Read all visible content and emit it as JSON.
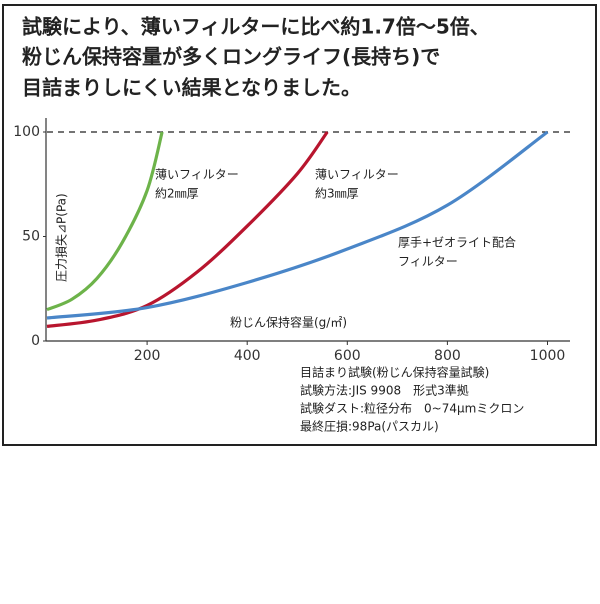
{
  "chart_data": {
    "type": "line",
    "title": [
      "試験により、薄いフィルターに比べ約1.7倍～5倍、",
      "粉じん保持容量が多くロングライフ(長持ち)で",
      "目詰まりしにくい結果となりました。"
    ],
    "x_label": "粉じん保持容量(g/㎡)",
    "y_label": "圧力損失⊿P(Pa)",
    "series": [
      {
        "color": "#6db34a",
        "x": [
          0,
          50,
          100,
          150,
          200,
          230
        ],
        "values": [
          15,
          20,
          30,
          47,
          72,
          100
        ],
        "label": [
          "薄いフィルター",
          "約2㎜厚"
        ]
      },
      {
        "color": "#b8152e",
        "x": [
          0,
          100,
          200,
          300,
          400,
          500,
          560
        ],
        "values": [
          7,
          10,
          17,
          33,
          55,
          80,
          100
        ],
        "label": [
          "薄いフィルター",
          "約3㎜厚"
        ]
      },
      {
        "color": "#4a86c8",
        "x": [
          0,
          200,
          400,
          600,
          800,
          1000
        ],
        "values": [
          11,
          16,
          28,
          44,
          65,
          100
        ],
        "label": [
          "厚手+ゼオライト配合",
          "フィルター"
        ]
      }
    ],
    "xlim": [
      0,
      1040
    ],
    "xticks": [
      200,
      400,
      600,
      800,
      1000
    ],
    "ylim": [
      0,
      105
    ],
    "yticks": [
      0,
      50,
      100
    ],
    "hline": 100,
    "notes": [
      "目詰まり試験(粉じん保持容量試験)",
      "試験方法:JIS 9908　形式3準拠",
      "試験ダスト:粒径分布　0~74μmミクロン",
      "最終圧損:98Pa(パスカル)"
    ]
  }
}
